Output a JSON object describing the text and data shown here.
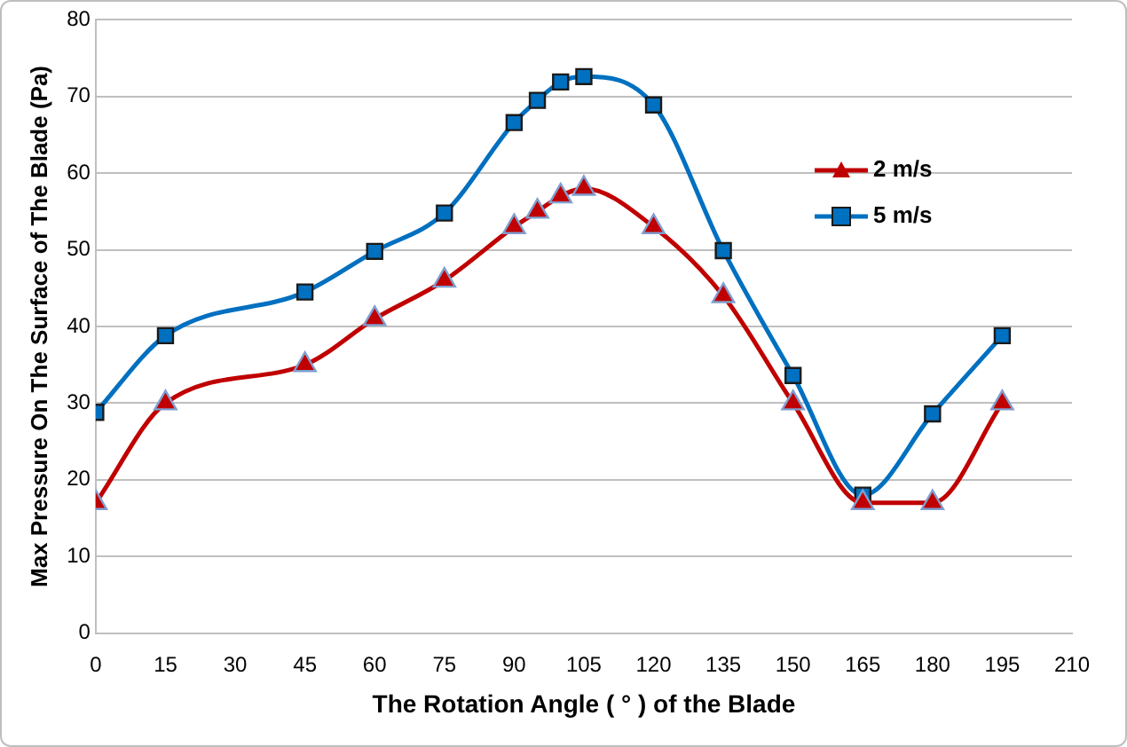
{
  "chart_data": {
    "type": "line",
    "xlabel": "The Rotation Angle ( ° ) of the Blade",
    "ylabel": "Max Pressure On The Surface of The Blade (Pa)",
    "x": [
      0,
      15,
      45,
      60,
      75,
      90,
      95,
      100,
      105,
      120,
      135,
      150,
      165,
      180,
      195
    ],
    "series": [
      {
        "name": "2 m/s",
        "color": "#c00000",
        "marker": "triangle",
        "values": [
          17,
          30,
          35,
          41,
          46,
          53,
          55,
          57,
          58,
          53,
          44,
          30,
          17,
          17,
          30
        ]
      },
      {
        "name": "5 m/s",
        "color": "#0070c0",
        "marker": "square",
        "values": [
          28.8,
          38.8,
          44.5,
          49.8,
          54.8,
          66.6,
          69.5,
          71.9,
          72.6,
          68.9,
          49.9,
          33.6,
          18,
          28.6,
          38.8
        ]
      }
    ],
    "xlim": [
      0,
      210
    ],
    "xticks": [
      0,
      15,
      30,
      45,
      60,
      75,
      90,
      105,
      120,
      135,
      150,
      165,
      180,
      195,
      210
    ],
    "ylim": [
      0,
      80
    ],
    "yticks": [
      0,
      10,
      20,
      30,
      40,
      50,
      60,
      70,
      80
    ],
    "grid": "y",
    "legend": "right"
  }
}
